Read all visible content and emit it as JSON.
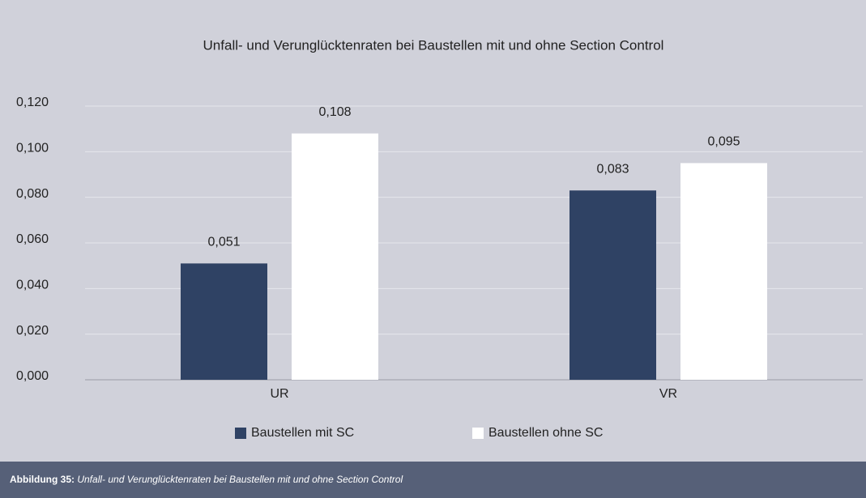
{
  "chart_data": {
    "type": "bar",
    "title": "Unfall- und Verunglücktenraten bei Baustellen mit und ohne Section Control",
    "categories": [
      "UR",
      "VR"
    ],
    "series": [
      {
        "name": "Baustellen mit SC",
        "color": "#2f4264",
        "values": [
          0.051,
          0.083
        ],
        "value_labels": [
          "0,051",
          "0,083"
        ]
      },
      {
        "name": "Baustellen ohne SC",
        "color": "#ffffff",
        "values": [
          0.108,
          0.095
        ],
        "value_labels": [
          "0,108",
          "0,095"
        ]
      }
    ],
    "ylim": [
      0,
      0.12
    ],
    "yticks": [
      {
        "value": 0,
        "label": "0,000"
      },
      {
        "value": 0.02,
        "label": "0,020"
      },
      {
        "value": 0.04,
        "label": "0,040"
      },
      {
        "value": 0.06,
        "label": "0,060"
      },
      {
        "value": 0.08,
        "label": "0,080"
      },
      {
        "value": 0.1,
        "label": "0,100"
      },
      {
        "value": 0.12,
        "label": "0,120"
      }
    ],
    "grid": true,
    "legend": "bottom"
  },
  "caption": {
    "label": "Abbildung 35:",
    "text": "Unfall- und Verunglücktenraten bei Baustellen mit und ohne Section Control"
  }
}
